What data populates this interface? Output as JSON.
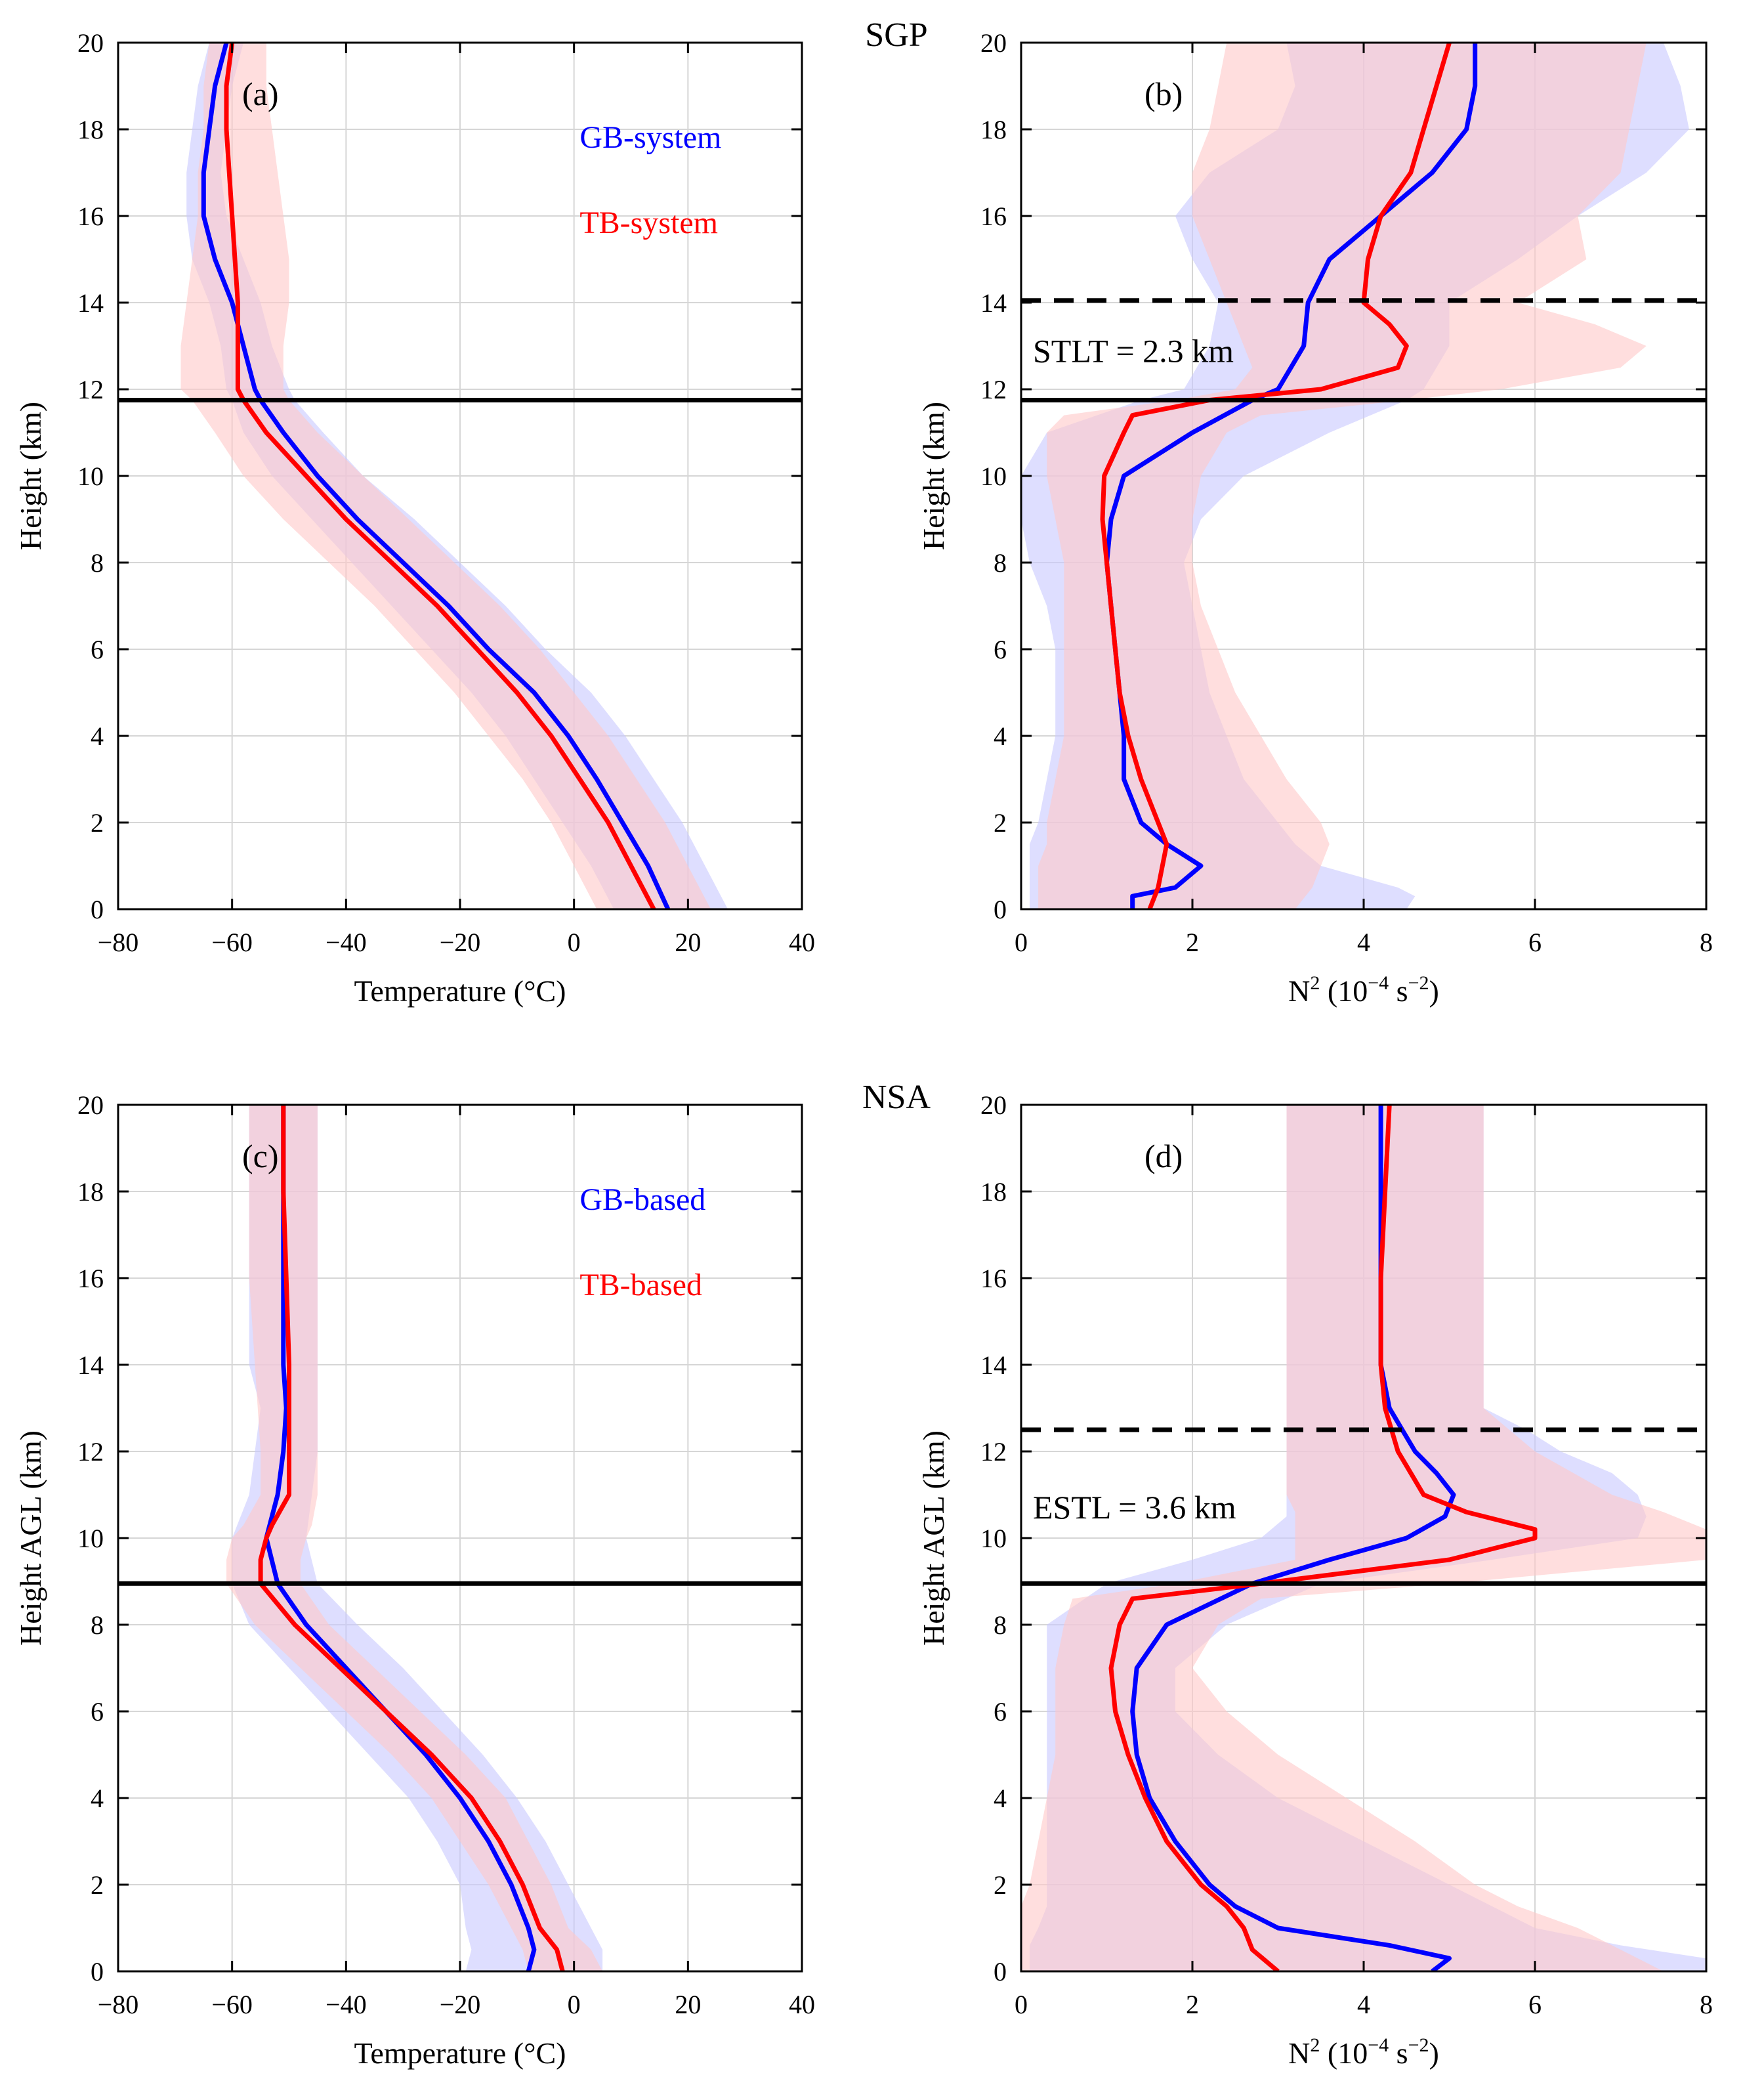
{
  "figure": {
    "site_labels": [
      "SGP",
      "NSA"
    ]
  },
  "chart_data": [
    {
      "type": "line",
      "panel_label": "(a)",
      "xlabel": "Temperature (°C)",
      "ylabel": "Height (km)",
      "xlim": [
        -80,
        40
      ],
      "ylim": [
        0,
        20
      ],
      "xticks": [
        -80,
        -60,
        -40,
        -20,
        0,
        20,
        40
      ],
      "yticks": [
        0,
        2,
        4,
        6,
        8,
        10,
        12,
        14,
        16,
        18,
        20
      ],
      "grid": true,
      "legend_position": "top-right",
      "hlines": [
        {
          "y": 11.75,
          "style": "solid"
        }
      ],
      "series": [
        {
          "name": "GB-system",
          "color": "#0000ff",
          "band_color": "#c8c8ff",
          "y": [
            0,
            1,
            2,
            3,
            4,
            5,
            6,
            7,
            8,
            9,
            10,
            11,
            11.75,
            12,
            13,
            14,
            15,
            16,
            17,
            18,
            19,
            20
          ],
          "x": [
            16.5,
            13,
            8.5,
            4,
            -1,
            -7,
            -15,
            -22,
            -30,
            -38,
            -45,
            -51,
            -55,
            -56,
            -58,
            -60,
            -63,
            -65,
            -65,
            -64,
            -63,
            -61
          ],
          "lower": [
            7,
            3,
            -2,
            -7,
            -12,
            -18,
            -25,
            -32,
            -39,
            -46,
            -53,
            -58,
            -60,
            -61,
            -62,
            -64,
            -67,
            -68,
            -68,
            -67,
            -66,
            -64
          ],
          "upper": [
            27,
            23,
            19,
            14,
            9,
            3,
            -5,
            -12,
            -20,
            -28,
            -37,
            -44,
            -49,
            -50,
            -53,
            -55,
            -58,
            -61,
            -62,
            -61,
            -60,
            -58
          ]
        },
        {
          "name": "TB-system",
          "color": "#ff0000",
          "band_color": "#ffc8c8",
          "y": [
            0,
            1,
            2,
            3,
            4,
            5,
            6,
            7,
            8,
            9,
            10,
            11,
            11.75,
            12,
            13,
            14,
            15,
            16,
            17,
            18,
            19,
            20
          ],
          "x": [
            14,
            10,
            6,
            1,
            -4,
            -10,
            -17,
            -24,
            -32,
            -40,
            -47,
            -54,
            -58,
            -59,
            -59,
            -59,
            -59.5,
            -60,
            -60.5,
            -61,
            -61,
            -60
          ],
          "lower": [
            4,
            0,
            -4,
            -9,
            -15,
            -21,
            -28,
            -35,
            -43,
            -51,
            -58,
            -63,
            -67,
            -69,
            -69,
            -68,
            -67,
            -66,
            -66,
            -65,
            -65,
            -64
          ],
          "upper": [
            24,
            20,
            16,
            11,
            6,
            0,
            -6,
            -13,
            -21,
            -29,
            -37,
            -45,
            -50,
            -51,
            -51,
            -50,
            -50,
            -51,
            -52,
            -53,
            -54,
            -54
          ]
        }
      ]
    },
    {
      "type": "line",
      "panel_label": "(b)",
      "xlabel_base": "N",
      "xlabel_power": "2",
      "xlabel_units": " (10",
      "xlabel_units_power": "−4",
      "xlabel_units_tail": " s",
      "xlabel_units_tail_power": "−2",
      "xlabel_close": ")",
      "ylabel": "Height (km)",
      "xlim": [
        0,
        8
      ],
      "ylim": [
        0,
        20
      ],
      "xticks": [
        0,
        2,
        4,
        6,
        8
      ],
      "yticks": [
        0,
        2,
        4,
        6,
        8,
        10,
        12,
        14,
        16,
        18,
        20
      ],
      "grid": true,
      "annotation": "STLT = 2.3 km",
      "hlines": [
        {
          "y": 11.75,
          "style": "solid"
        },
        {
          "y": 14.05,
          "style": "dashed"
        }
      ],
      "series": [
        {
          "name": "GB-system",
          "color": "#0000ff",
          "band_color": "#c8c8ff",
          "y": [
            0,
            0.3,
            0.5,
            1,
            1.5,
            2,
            3,
            4,
            5,
            6,
            7,
            8,
            9,
            10,
            11,
            11.75,
            12,
            13,
            14,
            15,
            16,
            17,
            18,
            19,
            20
          ],
          "x": [
            1.3,
            1.3,
            1.8,
            2.1,
            1.7,
            1.4,
            1.2,
            1.2,
            1.15,
            1.1,
            1.05,
            1.0,
            1.05,
            1.2,
            2.0,
            2.7,
            3.0,
            3.3,
            3.35,
            3.6,
            4.2,
            4.8,
            5.2,
            5.3,
            5.3
          ],
          "lower": [
            0.1,
            0.1,
            0.1,
            0.1,
            0.1,
            0.2,
            0.3,
            0.4,
            0.4,
            0.4,
            0.3,
            0.1,
            0.0,
            0.0,
            0.3,
            1.4,
            1.9,
            2.2,
            2.3,
            2.0,
            1.8,
            2.2,
            3.0,
            3.2,
            3.1
          ],
          "upper": [
            4.5,
            4.6,
            4.4,
            3.5,
            3.2,
            3.0,
            2.6,
            2.4,
            2.2,
            2.1,
            2.0,
            1.9,
            2.1,
            2.6,
            3.6,
            4.5,
            4.7,
            5.0,
            5.0,
            5.8,
            6.5,
            7.3,
            7.8,
            7.7,
            7.5
          ]
        },
        {
          "name": "TB-system",
          "color": "#ff0000",
          "band_color": "#ffc8c8",
          "y": [
            0,
            0.5,
            1,
            1.5,
            2,
            3,
            4,
            5,
            6,
            7,
            8,
            9,
            10,
            11,
            11.4,
            11.75,
            12,
            12.5,
            13,
            13.5,
            14,
            15,
            16,
            17,
            18,
            19,
            20
          ],
          "x": [
            1.5,
            1.6,
            1.65,
            1.7,
            1.6,
            1.4,
            1.25,
            1.15,
            1.1,
            1.05,
            1.0,
            0.95,
            0.97,
            1.2,
            1.3,
            2.2,
            3.5,
            4.4,
            4.5,
            4.3,
            4.0,
            4.05,
            4.2,
            4.55,
            4.7,
            4.85,
            5.0
          ],
          "lower": [
            0.2,
            0.2,
            0.2,
            0.3,
            0.3,
            0.4,
            0.5,
            0.5,
            0.5,
            0.5,
            0.5,
            0.4,
            0.3,
            0.3,
            0.5,
            1.8,
            2.5,
            2.7,
            2.6,
            2.5,
            2.4,
            2.2,
            2.0,
            2.0,
            2.2,
            2.3,
            2.4
          ],
          "upper": [
            3.2,
            3.4,
            3.5,
            3.6,
            3.5,
            3.1,
            2.8,
            2.5,
            2.3,
            2.1,
            2.0,
            2.0,
            2.1,
            2.4,
            2.8,
            4.5,
            5.6,
            7.0,
            7.3,
            6.7,
            5.8,
            6.6,
            6.5,
            7.0,
            7.1,
            7.2,
            7.3
          ]
        }
      ]
    },
    {
      "type": "line",
      "panel_label": "(c)",
      "xlabel": "Temperature (°C)",
      "ylabel": "Height AGL (km)",
      "xlim": [
        -80,
        40
      ],
      "ylim": [
        0,
        20
      ],
      "xticks": [
        -80,
        -60,
        -40,
        -20,
        0,
        20,
        40
      ],
      "yticks": [
        0,
        2,
        4,
        6,
        8,
        10,
        12,
        14,
        16,
        18,
        20
      ],
      "grid": true,
      "legend_position": "top-right",
      "hlines": [
        {
          "y": 8.95,
          "style": "solid"
        }
      ],
      "series": [
        {
          "name": "GB-based",
          "color": "#0000ff",
          "band_color": "#c8c8ff",
          "y": [
            0,
            0.5,
            1,
            2,
            3,
            4,
            5,
            6,
            7,
            8,
            8.95,
            10,
            11,
            12,
            13,
            14,
            16,
            18,
            20
          ],
          "x": [
            -8,
            -7,
            -8,
            -11,
            -15,
            -20,
            -26,
            -33,
            -40,
            -47,
            -52,
            -54,
            -52,
            -51,
            -50.5,
            -51,
            -51,
            -51,
            -51
          ],
          "lower": [
            -19,
            -18,
            -19,
            -20,
            -24,
            -29,
            -36,
            -43,
            -50,
            -57,
            -60,
            -60,
            -57,
            -56,
            -55,
            -57,
            -57,
            -57,
            -57
          ],
          "upper": [
            5,
            5,
            3,
            -1,
            -5,
            -10,
            -16,
            -23,
            -30,
            -38,
            -45,
            -47,
            -46,
            -45,
            -45,
            -45,
            -45,
            -45,
            -45
          ]
        },
        {
          "name": "TB-based",
          "color": "#ff0000",
          "band_color": "#ffc8c8",
          "y": [
            0,
            0.5,
            1,
            2,
            3,
            4,
            5,
            6,
            7,
            8,
            8.95,
            9.5,
            10,
            10.3,
            11,
            12,
            14,
            16,
            18,
            20
          ],
          "x": [
            -2,
            -3,
            -6,
            -9,
            -13,
            -18,
            -25,
            -33,
            -41,
            -49,
            -55,
            -55,
            -54,
            -53,
            -50,
            -50,
            -50,
            -50.5,
            -51,
            -51
          ],
          "lower": [
            -8,
            -9,
            -11,
            -15,
            -20,
            -25,
            -32,
            -40,
            -48,
            -56,
            -61,
            -61,
            -60,
            -58,
            -55,
            -55,
            -56,
            -57,
            -57,
            -57
          ],
          "upper": [
            5,
            3,
            -1,
            -4,
            -8,
            -12,
            -19,
            -27,
            -35,
            -43,
            -48,
            -48,
            -47,
            -46,
            -45,
            -45,
            -45,
            -45,
            -45,
            -45
          ]
        }
      ]
    },
    {
      "type": "line",
      "panel_label": "(d)",
      "xlabel_base": "N",
      "xlabel_power": "2",
      "xlabel_units": " (10",
      "xlabel_units_power": "−4",
      "xlabel_units_tail": " s",
      "xlabel_units_tail_power": "−2",
      "xlabel_close": ")",
      "ylabel": "Height AGL (km)",
      "xlim": [
        0,
        8
      ],
      "ylim": [
        0,
        20
      ],
      "xticks": [
        0,
        2,
        4,
        6,
        8
      ],
      "yticks": [
        0,
        2,
        4,
        6,
        8,
        10,
        12,
        14,
        16,
        18,
        20
      ],
      "grid": true,
      "annotation": "ESTL = 3.6 km",
      "hlines": [
        {
          "y": 8.95,
          "style": "solid"
        },
        {
          "y": 12.5,
          "style": "dashed"
        }
      ],
      "series": [
        {
          "name": "GB-based",
          "color": "#0000ff",
          "band_color": "#c8c8ff",
          "y": [
            0,
            0.3,
            0.6,
            1,
            1.5,
            2,
            3,
            4,
            5,
            6,
            7,
            8,
            8.95,
            9.5,
            10,
            10.5,
            11,
            11.5,
            12,
            12.5,
            13,
            14,
            16,
            18,
            20
          ],
          "x": [
            4.8,
            5.0,
            4.3,
            3.0,
            2.5,
            2.2,
            1.8,
            1.5,
            1.35,
            1.3,
            1.35,
            1.7,
            2.7,
            3.6,
            4.5,
            4.95,
            5.05,
            4.85,
            4.6,
            4.45,
            4.3,
            4.2,
            4.2,
            4.2,
            4.2
          ],
          "lower": [
            0.1,
            0.1,
            0.1,
            0.2,
            0.3,
            0.3,
            0.3,
            0.3,
            0.3,
            0.3,
            0.3,
            0.3,
            1.0,
            2.0,
            2.8,
            3.1,
            3.1,
            3.1,
            3.1,
            3.1,
            3.1,
            3.1,
            3.1,
            3.1,
            3.1
          ],
          "upper": [
            8.0,
            8.0,
            7.0,
            6.0,
            5.5,
            5.0,
            4.0,
            3.0,
            2.3,
            1.8,
            1.8,
            2.4,
            3.5,
            5.5,
            7.2,
            7.3,
            7.2,
            6.9,
            6.3,
            5.9,
            5.4,
            5.4,
            5.4,
            5.4,
            5.4
          ]
        },
        {
          "name": "TB-based",
          "color": "#ff0000",
          "band_color": "#ffc8c8",
          "y": [
            0,
            0.5,
            1,
            1.5,
            2,
            3,
            4,
            5,
            6,
            7,
            8,
            8.6,
            8.95,
            9.5,
            10,
            10.2,
            10.6,
            11,
            12,
            13,
            14,
            16,
            18,
            20
          ],
          "x": [
            3.0,
            2.7,
            2.6,
            2.4,
            2.1,
            1.7,
            1.45,
            1.25,
            1.1,
            1.05,
            1.15,
            1.3,
            2.8,
            5.0,
            6.0,
            6.0,
            5.2,
            4.7,
            4.4,
            4.25,
            4.2,
            4.2,
            4.25,
            4.3
          ],
          "lower": [
            0.0,
            0.0,
            0.0,
            0.0,
            0.1,
            0.2,
            0.3,
            0.4,
            0.4,
            0.4,
            0.5,
            0.6,
            1.8,
            3.2,
            3.2,
            3.2,
            3.2,
            3.1,
            3.1,
            3.1,
            3.1,
            3.1,
            3.1,
            3.1
          ],
          "upper": [
            7.5,
            7.0,
            6.5,
            5.8,
            5.3,
            4.6,
            3.8,
            3.0,
            2.4,
            2.0,
            2.3,
            2.8,
            5.0,
            8.0,
            8.0,
            8.0,
            7.5,
            6.9,
            6.0,
            5.4,
            5.4,
            5.4,
            5.4,
            5.4
          ]
        }
      ]
    }
  ]
}
